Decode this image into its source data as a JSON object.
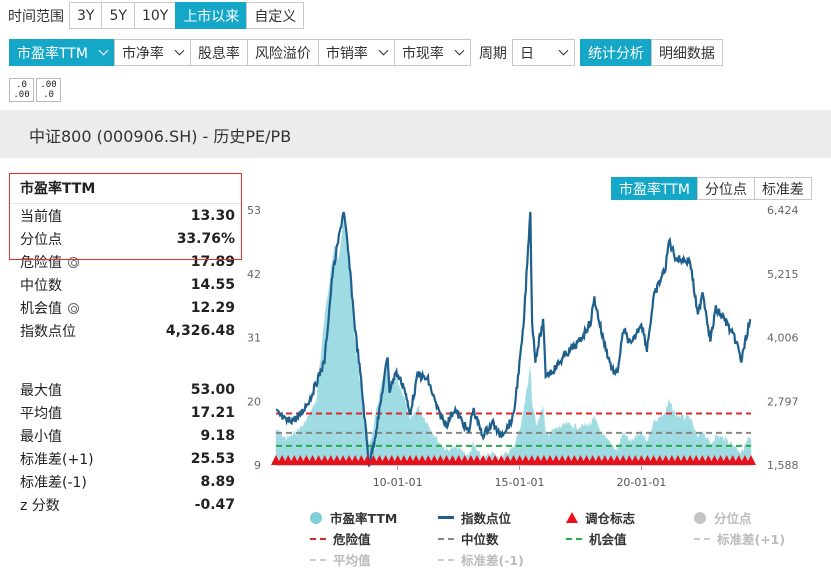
{
  "filters": {
    "time_range_label": "时间范围",
    "time_ranges": [
      "3Y",
      "5Y",
      "10Y",
      "上市以来",
      "自定义"
    ],
    "time_range_active": 3,
    "metrics": [
      "市盈率TTM",
      "市净率",
      "股息率",
      "风险溢价",
      "市销率",
      "市现率"
    ],
    "metric_active": 0,
    "metric_has_dropdown": [
      true,
      true,
      false,
      false,
      true,
      true
    ],
    "period_label": "周期",
    "period_value": "日",
    "view_modes": [
      "统计分析",
      "明细数据"
    ],
    "view_active": 0,
    "decimal_buttons": [
      ".0\n.00",
      ".00\n.0"
    ]
  },
  "page_title": "中证800 (000906.SH) - 历史PE/PB",
  "stats": {
    "title": "市盈率TTM",
    "current_label": "当前值",
    "current_value": "13.30",
    "percentile_label": "分位点",
    "percentile_value": "33.76%",
    "danger_label": "危险值",
    "danger_value": "17.89",
    "median_label": "中位数",
    "median_value": "14.55",
    "chance_label": "机会值",
    "chance_value": "12.29",
    "index_label": "指数点位",
    "index_value": "4,326.48",
    "max_label": "最大值",
    "max_value": "53.00",
    "mean_label": "平均值",
    "mean_value": "17.21",
    "min_label": "最小值",
    "min_value": "9.18",
    "std_plus_label": "标准差(+1)",
    "std_plus_value": "25.53",
    "std_minus_label": "标准差(-1)",
    "std_minus_value": "8.89",
    "z_label": "z 分数",
    "z_value": "-0.47"
  },
  "chart_tabs": [
    "市盈率TTM",
    "分位点",
    "标准差"
  ],
  "chart_tab_active": 0,
  "chart_data": {
    "type": "line",
    "x_range": [
      "2005-01-04",
      "2024-06-30"
    ],
    "x_ticks": [
      "10-01-01",
      "15-01-01",
      "20-01-01"
    ],
    "y_left": {
      "ticks": [
        9,
        20,
        31,
        42,
        53
      ],
      "range": [
        9,
        53
      ]
    },
    "y_right": {
      "ticks": [
        "1,588",
        "2,797",
        "4,006",
        "5,215",
        "6,424"
      ],
      "range": [
        1588,
        6424
      ]
    },
    "reference_lines": {
      "danger": 17.89,
      "median": 14.55,
      "chance": 12.29
    },
    "series": [
      {
        "name": "市盈率TTM",
        "kind": "area",
        "color": "#7fcfd9",
        "points": [
          [
            "2005-01-04",
            15
          ],
          [
            "2005-06-01",
            13.5
          ],
          [
            "2005-09-01",
            14
          ],
          [
            "2006-03-01",
            16
          ],
          [
            "2006-09-01",
            20
          ],
          [
            "2007-01-01",
            34
          ],
          [
            "2007-04-01",
            42
          ],
          [
            "2007-06-01",
            47
          ],
          [
            "2007-08-01",
            44
          ],
          [
            "2007-10-15",
            52
          ],
          [
            "2008-01-01",
            44
          ],
          [
            "2008-04-01",
            30
          ],
          [
            "2008-07-01",
            22
          ],
          [
            "2008-10-28",
            12.5
          ],
          [
            "2009-01-01",
            15
          ],
          [
            "2009-04-01",
            21
          ],
          [
            "2009-08-01",
            27
          ],
          [
            "2009-09-01",
            22
          ],
          [
            "2009-12-01",
            24
          ],
          [
            "2010-04-01",
            21
          ],
          [
            "2010-07-01",
            16.5
          ],
          [
            "2010-11-01",
            19
          ],
          [
            "2011-04-01",
            16
          ],
          [
            "2011-09-01",
            13
          ],
          [
            "2012-01-01",
            11.5
          ],
          [
            "2012-06-01",
            12
          ],
          [
            "2012-12-01",
            10.5
          ],
          [
            "2013-02-01",
            12.5
          ],
          [
            "2013-06-25",
            10
          ],
          [
            "2013-12-01",
            11
          ],
          [
            "2014-03-01",
            10
          ],
          [
            "2014-07-01",
            11
          ],
          [
            "2014-10-01",
            12
          ],
          [
            "2014-12-31",
            15
          ],
          [
            "2015-03-01",
            18
          ],
          [
            "2015-06-12",
            26
          ],
          [
            "2015-07-10",
            19
          ],
          [
            "2015-09-15",
            16
          ],
          [
            "2015-12-20",
            19
          ],
          [
            "2016-01-28",
            14
          ],
          [
            "2016-06-01",
            15
          ],
          [
            "2016-12-01",
            16
          ],
          [
            "2017-06-01",
            15.5
          ],
          [
            "2017-12-01",
            16
          ],
          [
            "2018-01-26",
            17
          ],
          [
            "2018-06-01",
            14
          ],
          [
            "2018-12-31",
            11.5
          ],
          [
            "2019-04-01",
            14.5
          ],
          [
            "2019-08-01",
            13
          ],
          [
            "2019-12-31",
            14.5
          ],
          [
            "2020-03-20",
            13
          ],
          [
            "2020-07-10",
            16.5
          ],
          [
            "2020-12-31",
            18
          ],
          [
            "2021-02-18",
            20
          ],
          [
            "2021-06-01",
            17.5
          ],
          [
            "2021-12-31",
            17
          ],
          [
            "2022-04-26",
            13.5
          ],
          [
            "2022-07-01",
            15
          ],
          [
            "2022-10-31",
            12.5
          ],
          [
            "2023-01-20",
            14
          ],
          [
            "2023-06-01",
            13.5
          ],
          [
            "2023-12-01",
            12
          ],
          [
            "2024-02-05",
            11
          ],
          [
            "2024-05-20",
            13.5
          ],
          [
            "2024-06-30",
            13.3
          ]
        ]
      },
      {
        "name": "指数点位",
        "kind": "line",
        "color": "#1e5f8c",
        "points": [
          [
            "2005-01-04",
            2600
          ],
          [
            "2005-06-01",
            2420
          ],
          [
            "2005-12-01",
            2480
          ],
          [
            "2006-06-01",
            2850
          ],
          [
            "2006-12-31",
            3550
          ],
          [
            "2007-05-01",
            5200
          ],
          [
            "2007-10-15",
            6424
          ],
          [
            "2008-01-01",
            5500
          ],
          [
            "2008-04-01",
            4200
          ],
          [
            "2008-07-01",
            3200
          ],
          [
            "2008-10-28",
            1600
          ],
          [
            "2009-01-01",
            1950
          ],
          [
            "2009-04-01",
            2600
          ],
          [
            "2009-08-03",
            3650
          ],
          [
            "2009-09-01",
            3000
          ],
          [
            "2009-12-01",
            3350
          ],
          [
            "2010-04-01",
            3100
          ],
          [
            "2010-07-01",
            2550
          ],
          [
            "2010-11-01",
            3300
          ],
          [
            "2011-04-01",
            3200
          ],
          [
            "2011-09-01",
            2600
          ],
          [
            "2012-01-01",
            2350
          ],
          [
            "2012-05-01",
            2650
          ],
          [
            "2012-12-03",
            2200
          ],
          [
            "2013-02-01",
            2650
          ],
          [
            "2013-06-25",
            2150
          ],
          [
            "2013-12-01",
            2400
          ],
          [
            "2014-03-01",
            2150
          ],
          [
            "2014-07-01",
            2300
          ],
          [
            "2014-10-01",
            2500
          ],
          [
            "2014-12-31",
            3500
          ],
          [
            "2015-03-01",
            4200
          ],
          [
            "2015-06-12",
            6424
          ],
          [
            "2015-07-08",
            4300
          ],
          [
            "2015-08-26",
            3600
          ],
          [
            "2015-12-20",
            4300
          ],
          [
            "2016-01-28",
            3300
          ],
          [
            "2016-06-01",
            3400
          ],
          [
            "2016-12-01",
            3700
          ],
          [
            "2017-06-01",
            3900
          ],
          [
            "2017-12-01",
            4300
          ],
          [
            "2018-01-26",
            4750
          ],
          [
            "2018-06-01",
            4000
          ],
          [
            "2018-10-18",
            3400
          ],
          [
            "2018-12-31",
            3300
          ],
          [
            "2019-04-08",
            4150
          ],
          [
            "2019-08-01",
            3850
          ],
          [
            "2019-12-31",
            4300
          ],
          [
            "2020-03-23",
            3800
          ],
          [
            "2020-07-10",
            4800
          ],
          [
            "2020-12-31",
            5350
          ],
          [
            "2021-02-18",
            5850
          ],
          [
            "2021-06-01",
            5500
          ],
          [
            "2021-12-31",
            5450
          ],
          [
            "2022-04-26",
            4400
          ],
          [
            "2022-07-05",
            4900
          ],
          [
            "2022-10-31",
            3950
          ],
          [
            "2023-01-20",
            4550
          ],
          [
            "2023-06-01",
            4350
          ],
          [
            "2023-12-01",
            3900
          ],
          [
            "2024-02-05",
            3550
          ],
          [
            "2024-05-20",
            4200
          ],
          [
            "2024-06-30",
            4326
          ]
        ]
      },
      {
        "name": "调仓标志",
        "kind": "markers",
        "color": "#e8111b",
        "y_value": 9,
        "start": "2005-01-04",
        "end": "2024-06-30",
        "count": 79
      }
    ],
    "legend": [
      {
        "label": "市盈率TTM",
        "style": "dot",
        "color": "#7fcfd9",
        "active": true
      },
      {
        "label": "指数点位",
        "style": "line",
        "color": "#1e5f8c",
        "active": true
      },
      {
        "label": "调仓标志",
        "style": "triangle",
        "color": "#e8111b",
        "active": true
      },
      {
        "label": "分位点",
        "style": "dot",
        "color": "#c4c4c4",
        "active": false
      },
      {
        "label": "危险值",
        "style": "dash",
        "color": "#d92b2b",
        "active": true
      },
      {
        "label": "中位数",
        "style": "dash",
        "color": "#888888",
        "active": true
      },
      {
        "label": "机会值",
        "style": "dash",
        "color": "#2aa84a",
        "active": true
      },
      {
        "label": "标准差(+1)",
        "style": "dash",
        "color": "#cccccc",
        "active": false
      },
      {
        "label": "平均值",
        "style": "dash",
        "color": "#cccccc",
        "active": false
      },
      {
        "label": "标准差(-1)",
        "style": "dash",
        "color": "#cccccc",
        "active": false
      }
    ]
  }
}
